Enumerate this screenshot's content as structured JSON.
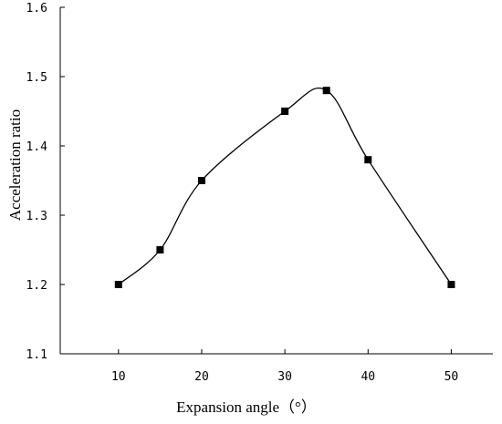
{
  "chart_data": {
    "type": "line",
    "title": "",
    "xlabel": "Expansion angle（°）",
    "ylabel": "Acceleration ratio",
    "x": [
      10,
      15,
      20,
      30,
      35,
      40,
      50
    ],
    "series": [
      {
        "values": [
          1.2,
          1.25,
          1.35,
          1.45,
          1.48,
          1.38,
          1.2
        ]
      }
    ],
    "xticks": [
      10,
      20,
      30,
      40,
      50
    ],
    "xtick_labels": [
      "10",
      "20",
      "30",
      "40",
      "50"
    ],
    "yticks": [
      1.1,
      1.2,
      1.3,
      1.4,
      1.5,
      1.6
    ],
    "ytick_labels": [
      "1.1",
      "1.2",
      "1.3",
      "1.4",
      "1.5",
      "1.6"
    ],
    "xlim": [
      3,
      55
    ],
    "ylim": [
      1.1,
      1.6
    ],
    "grid": false,
    "legend": "none",
    "marker": "square",
    "line_style": "smooth",
    "colors": {
      "line": "#000000",
      "marker": "#000000",
      "axis": "#000000"
    }
  }
}
